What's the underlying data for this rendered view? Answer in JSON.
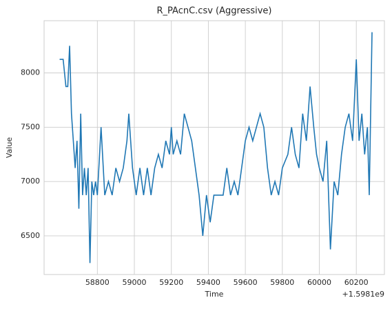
{
  "chart_data": {
    "type": "line",
    "title": "R_PAcnC.csv (Aggressive)",
    "xlabel": "Time",
    "ylabel": "Value",
    "x_offset_label": "+1.5981e9",
    "x": [
      58596,
      58615,
      58630,
      58640,
      58650,
      58660,
      58670,
      58680,
      58690,
      58700,
      58710,
      58720,
      58730,
      58740,
      58750,
      58760,
      58770,
      58780,
      58790,
      58800,
      58820,
      58840,
      58860,
      58880,
      58900,
      58920,
      58940,
      58960,
      58970,
      58980,
      58990,
      59010,
      59030,
      59050,
      59070,
      59090,
      59110,
      59130,
      59150,
      59170,
      59190,
      59200,
      59210,
      59230,
      59250,
      59270,
      59290,
      59310,
      59330,
      59350,
      59370,
      59390,
      59410,
      59430,
      59450,
      59480,
      59500,
      59520,
      59540,
      59560,
      59580,
      59600,
      59620,
      59640,
      59660,
      59680,
      59700,
      59720,
      59740,
      59760,
      59780,
      59800,
      59830,
      59850,
      59870,
      59890,
      59910,
      59930,
      59950,
      59970,
      59985,
      60000,
      60020,
      60040,
      60060,
      60080,
      60100,
      60120,
      60140,
      60160,
      60180,
      60200,
      60215,
      60230,
      60245,
      60260,
      60270,
      60285
    ],
    "series": [
      {
        "name": "Value",
        "color": "#1f77b4",
        "values": [
          8125,
          8125,
          7875,
          7875,
          8250,
          7625,
          7375,
          7125,
          7375,
          6750,
          7625,
          6875,
          7125,
          6875,
          7125,
          6250,
          7000,
          6875,
          7000,
          6875,
          7500,
          6875,
          7000,
          6875,
          7125,
          7000,
          7125,
          7375,
          7625,
          7375,
          7125,
          6875,
          7125,
          6875,
          7125,
          6875,
          7125,
          7250,
          7125,
          7375,
          7250,
          7500,
          7250,
          7375,
          7250,
          7625,
          7500,
          7375,
          7125,
          6875,
          6500,
          6875,
          6625,
          6875,
          6875,
          6875,
          7125,
          6875,
          7000,
          6875,
          7125,
          7375,
          7500,
          7375,
          7500,
          7625,
          7500,
          7125,
          6875,
          7000,
          6875,
          7125,
          7250,
          7500,
          7250,
          7125,
          7625,
          7375,
          7875,
          7500,
          7250,
          7125,
          7000,
          7375,
          6375,
          7000,
          6875,
          7250,
          7500,
          7625,
          7375,
          8125,
          7375,
          7625,
          7250,
          7500,
          6875,
          8375
        ]
      }
    ],
    "xlim": [
      58512,
      60352
    ],
    "ylim": [
      6144,
      8481
    ],
    "xticks": [
      58800,
      59000,
      59200,
      59400,
      59600,
      59800,
      60000,
      60200
    ],
    "yticks": [
      6500,
      7000,
      7500,
      8000
    ],
    "grid": true
  }
}
